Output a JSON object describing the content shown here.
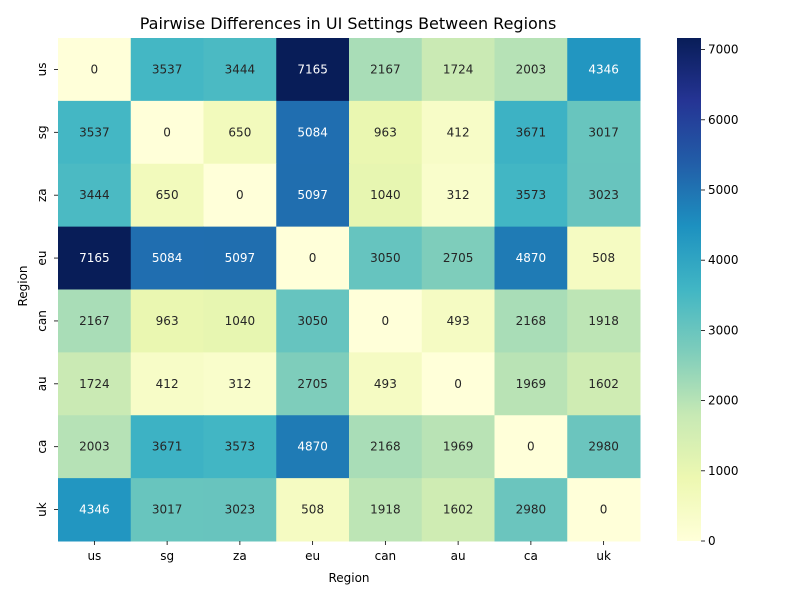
{
  "chart_data": {
    "type": "heatmap",
    "title": "Pairwise Differences in UI Settings Between Regions",
    "xlabel": "Region",
    "ylabel": "Region",
    "x_categories": [
      "us",
      "sg",
      "za",
      "eu",
      "can",
      "au",
      "ca",
      "uk"
    ],
    "y_categories": [
      "us",
      "sg",
      "za",
      "eu",
      "can",
      "au",
      "ca",
      "uk"
    ],
    "values": [
      [
        0,
        3537,
        3444,
        7165,
        2167,
        1724,
        2003,
        4346
      ],
      [
        3537,
        0,
        650,
        5084,
        963,
        412,
        3671,
        3017
      ],
      [
        3444,
        650,
        0,
        5097,
        1040,
        312,
        3573,
        3023
      ],
      [
        7165,
        5084,
        5097,
        0,
        3050,
        2705,
        4870,
        508
      ],
      [
        2167,
        963,
        1040,
        3050,
        0,
        493,
        2168,
        1918
      ],
      [
        1724,
        412,
        312,
        2705,
        493,
        0,
        1969,
        1602
      ],
      [
        2003,
        3671,
        3573,
        4870,
        2168,
        1969,
        0,
        2980
      ],
      [
        4346,
        3017,
        3023,
        508,
        1918,
        1602,
        2980,
        0
      ]
    ],
    "colormap": "YlGnBu",
    "colorbar": {
      "range": [
        0,
        7165
      ],
      "ticks": [
        0,
        1000,
        2000,
        3000,
        4000,
        5000,
        6000,
        7000
      ]
    },
    "grid": false
  }
}
